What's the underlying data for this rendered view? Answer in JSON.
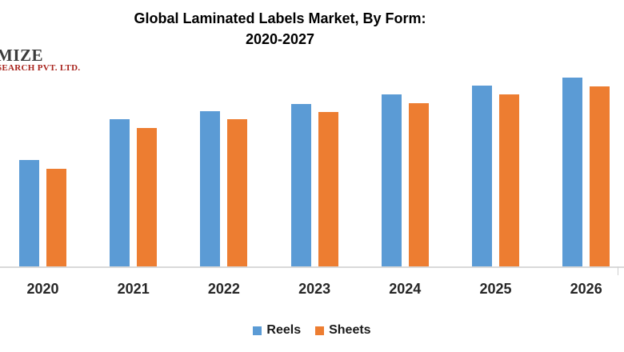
{
  "header": {
    "title_line1": "Global Laminated Labels Market, By Form:",
    "title_line2": "2020-2027"
  },
  "logo": {
    "line1": "MIZE",
    "line2": "SEARCH PVT. LTD."
  },
  "colors": {
    "reels_blue": "#5B9BD5",
    "sheets_orange": "#ED7D31",
    "axis_line": "#D9D9D9",
    "category_label_text": "#262626",
    "logo_top_text": "#3B3B3B",
    "logo_bottom_text": "#A8231C"
  },
  "legend": {
    "items": [
      {
        "label": "Reels",
        "color": "#5B9BD5"
      },
      {
        "label": "Sheets",
        "color": "#ED7D31"
      }
    ]
  },
  "chart_data": {
    "type": "bar",
    "title": "Global Laminated Labels Market, By Form: 2020-2027",
    "categories": [
      "2020",
      "2021",
      "2022",
      "2023",
      "2024",
      "2025",
      "2026"
    ],
    "series": [
      {
        "name": "Reels",
        "color": "#5B9BD5",
        "values": [
          56.4,
          78.0,
          82.2,
          86.0,
          91.1,
          95.8,
          100.0
        ]
      },
      {
        "name": "Sheets",
        "color": "#ED7D31",
        "values": [
          51.7,
          73.3,
          78.0,
          81.8,
          86.4,
          91.1,
          95.3
        ]
      }
    ],
    "value_axis": {
      "visible": false,
      "note": "no value labels or gridlines shown in image; values are relative bar heights scaled so tallest bar = 100"
    },
    "category_axis": {
      "visible": true
    },
    "grid": false,
    "legend_position": "bottom",
    "note_visible_range": "2027 bars not visible in cropped image"
  }
}
